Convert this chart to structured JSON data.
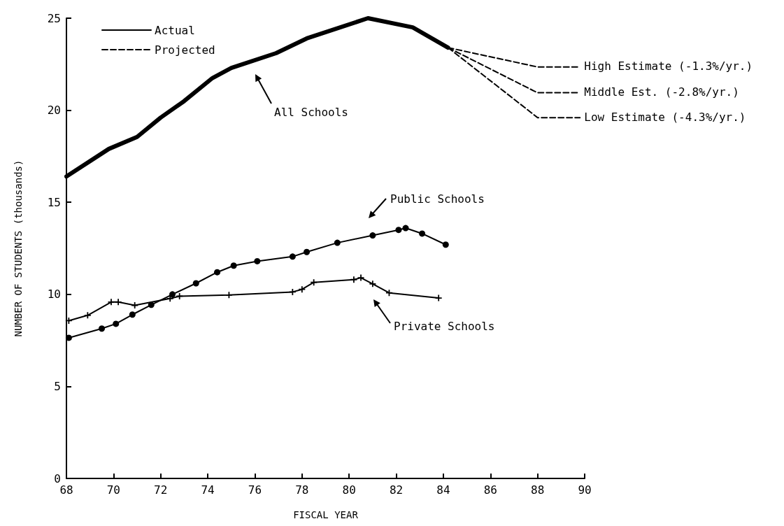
{
  "chart_data": {
    "type": "line",
    "xlabel": "FISCAL YEAR",
    "ylabel": "NUMBER OF STUDENTS (thousands)",
    "xlim": [
      68,
      90
    ],
    "xticks": [
      68,
      70,
      72,
      74,
      76,
      78,
      80,
      82,
      84,
      86,
      88,
      90
    ],
    "ylim": [
      0,
      25
    ],
    "yticks": [
      0,
      5,
      10,
      15,
      20,
      25
    ],
    "grid": false,
    "legend": "top left",
    "series": [
      {
        "name": "Actual",
        "color": "#000000",
        "line_style": "solid",
        "marker": "none",
        "x": [
          68,
          69.8,
          71.0,
          72.0,
          73.0,
          74.2,
          75.0,
          76.9,
          78.2,
          80.8,
          82.7,
          84.2
        ],
        "values": [
          16.4,
          17.9,
          18.55,
          19.6,
          20.5,
          21.75,
          22.3,
          23.1,
          23.9,
          25.0,
          24.5,
          23.4
        ]
      },
      {
        "name": "Projected",
        "color": "#000000",
        "line_style": "dashed",
        "marker": "none",
        "x": [
          84.2,
          88,
          89.8
        ],
        "values": [
          23.4,
          22.35,
          22.35
        ]
      },
      {
        "color": "#000000",
        "line_style": "dashed",
        "marker": "none",
        "x": [
          84.2,
          88,
          89.8
        ],
        "values": [
          23.4,
          20.95,
          20.95
        ]
      },
      {
        "color": "#000000",
        "line_style": "dashed",
        "marker": "none",
        "x": [
          84.2,
          88,
          89.8
        ],
        "values": [
          23.4,
          19.6,
          19.6
        ]
      },
      {
        "color": "#000000",
        "line_style": "solid",
        "marker": "circle",
        "x": [
          68.1,
          69.5,
          70.1,
          70.8,
          71.6,
          72.5,
          73.5,
          74.4,
          75.1,
          76.1,
          77.6,
          78.2,
          79.5,
          81.0,
          82.1,
          82.4,
          83.1,
          84.1
        ],
        "values": [
          7.64,
          8.14,
          8.4,
          8.9,
          9.43,
          10.0,
          10.6,
          11.2,
          11.56,
          11.8,
          12.05,
          12.3,
          12.8,
          13.2,
          13.5,
          13.6,
          13.3,
          12.7
        ]
      },
      {
        "color": "#000000",
        "line_style": "solid",
        "marker": "cross",
        "x": [
          68.1,
          68.9,
          69.9,
          70.2,
          70.9,
          72.4,
          72.8,
          74.9,
          77.6,
          78.0,
          78.5,
          80.2,
          80.5,
          81.0,
          81.7,
          83.8
        ],
        "values": [
          8.57,
          8.86,
          9.58,
          9.58,
          9.4,
          9.77,
          9.9,
          9.96,
          10.13,
          10.27,
          10.65,
          10.8,
          10.9,
          10.57,
          10.08,
          9.8
        ]
      }
    ],
    "annotations": [
      "All Schools",
      "Public Schools",
      "Private Schools",
      "High Estimate (-1.3%/yr.)",
      "Middle Est. (-2.8%/yr.)",
      "Low Estimate (-4.3%/yr.)"
    ]
  }
}
